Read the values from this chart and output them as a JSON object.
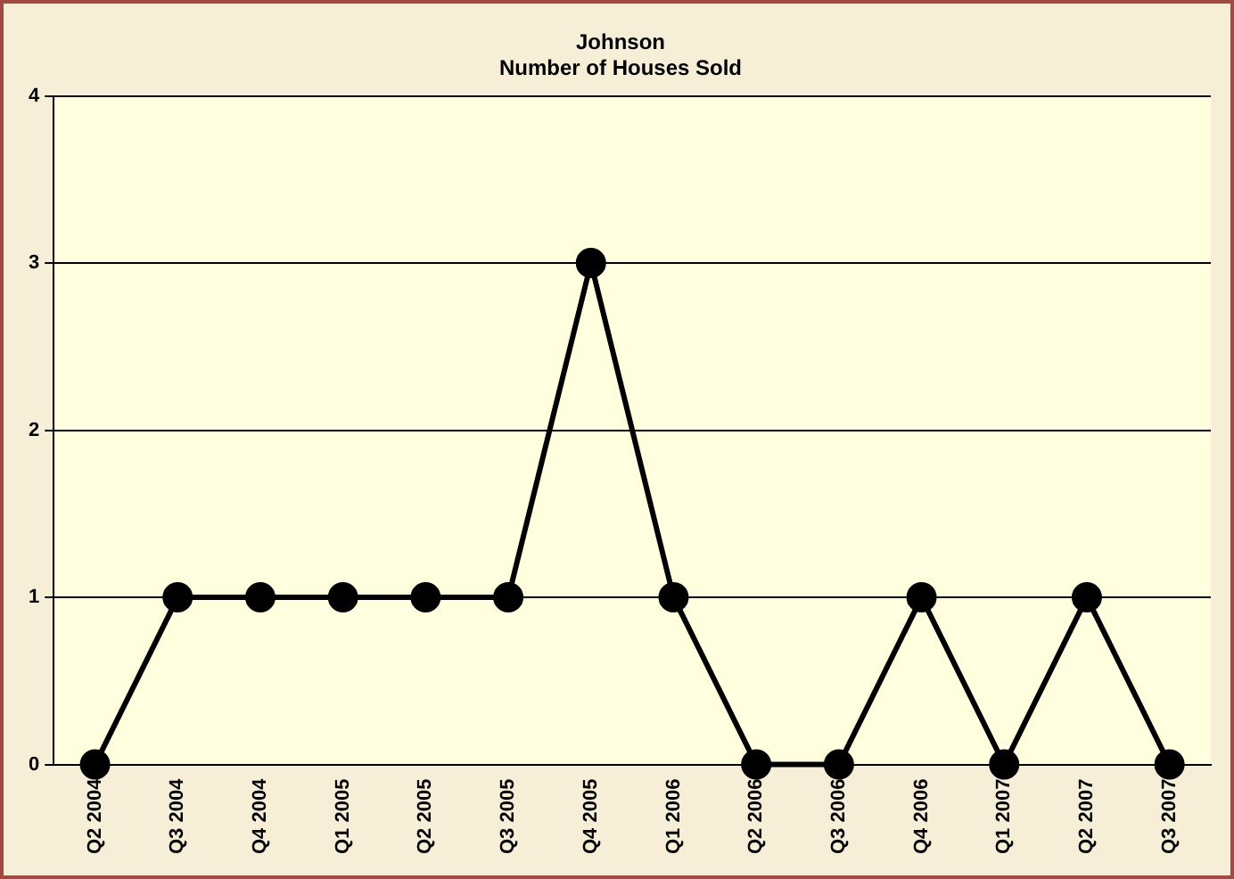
{
  "chart_data": {
    "type": "line",
    "title": "Johnson",
    "subtitle": "Number of Houses Sold",
    "categories": [
      "Q2 2004",
      "Q3 2004",
      "Q4 2004",
      "Q1 2005",
      "Q2 2005",
      "Q3 2005",
      "Q4 2005",
      "Q1 2006",
      "Q2 2006",
      "Q3 2006",
      "Q4 2006",
      "Q1 2007",
      "Q2 2007",
      "Q3 2007"
    ],
    "series": [
      {
        "color": "#000000",
        "values": [
          0,
          1,
          1,
          1,
          1,
          1,
          3,
          1,
          0,
          0,
          1,
          0,
          1,
          0
        ]
      }
    ],
    "ylim": [
      0,
      4
    ],
    "yticks": [
      0,
      1,
      2,
      3,
      4
    ],
    "grid": "y",
    "legend": false,
    "marker": "circle",
    "line_style": "solid"
  }
}
